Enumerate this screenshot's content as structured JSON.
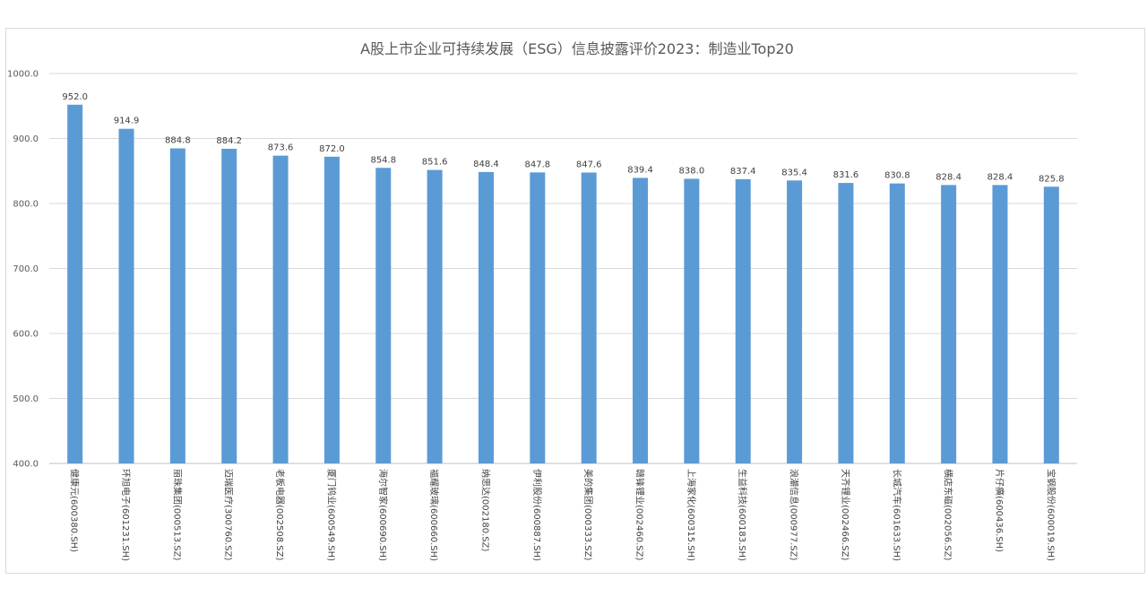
{
  "chart_data": {
    "type": "bar",
    "title": "A股上市企业可持续发展（ESG）信息披露评价2023：制造业Top20",
    "xlabel": "",
    "ylabel": "",
    "ylim": [
      400,
      1000
    ],
    "yticks": [
      "400.0",
      "500.0",
      "600.0",
      "700.0",
      "800.0",
      "900.0",
      "1000.0"
    ],
    "grid": true,
    "legend": "none",
    "bar_color": "#5b9bd5",
    "categories": [
      "健康元(600380.SH)",
      "环旭电子(601231.SH)",
      "丽珠集团(000513.SZ)",
      "迈瑞医疗(300760.SZ)",
      "老板电器(002508.SZ)",
      "厦门钨业(600549.SH)",
      "海尔智家(600690.SH)",
      "福耀玻璃(600660.SH)",
      "纳思达(002180.SZ)",
      "伊利股份(600887.SH)",
      "美的集团(000333.SZ)",
      "赣锋锂业(002460.SZ)",
      "上海家化(600315.SH)",
      "生益科技(600183.SH)",
      "浪潮信息(000977.SZ)",
      "天齐锂业(002466.SZ)",
      "长城汽车(601633.SH)",
      "横店东磁(002056.SZ)",
      "片仔癀(600436.SH)",
      "宝钢股份(600019.SH)"
    ],
    "values": [
      952.0,
      914.9,
      884.8,
      884.2,
      873.6,
      872.0,
      854.8,
      851.6,
      848.4,
      847.8,
      847.6,
      839.4,
      838.0,
      837.4,
      835.4,
      831.6,
      830.8,
      828.4,
      828.4,
      825.8
    ],
    "value_labels": [
      "952.0",
      "914.9",
      "884.8",
      "884.2",
      "873.6",
      "872.0",
      "854.8",
      "851.6",
      "848.4",
      "847.8",
      "847.6",
      "839.4",
      "838.0",
      "837.4",
      "835.4",
      "831.6",
      "830.8",
      "828.4",
      "828.4",
      "825.8"
    ]
  }
}
